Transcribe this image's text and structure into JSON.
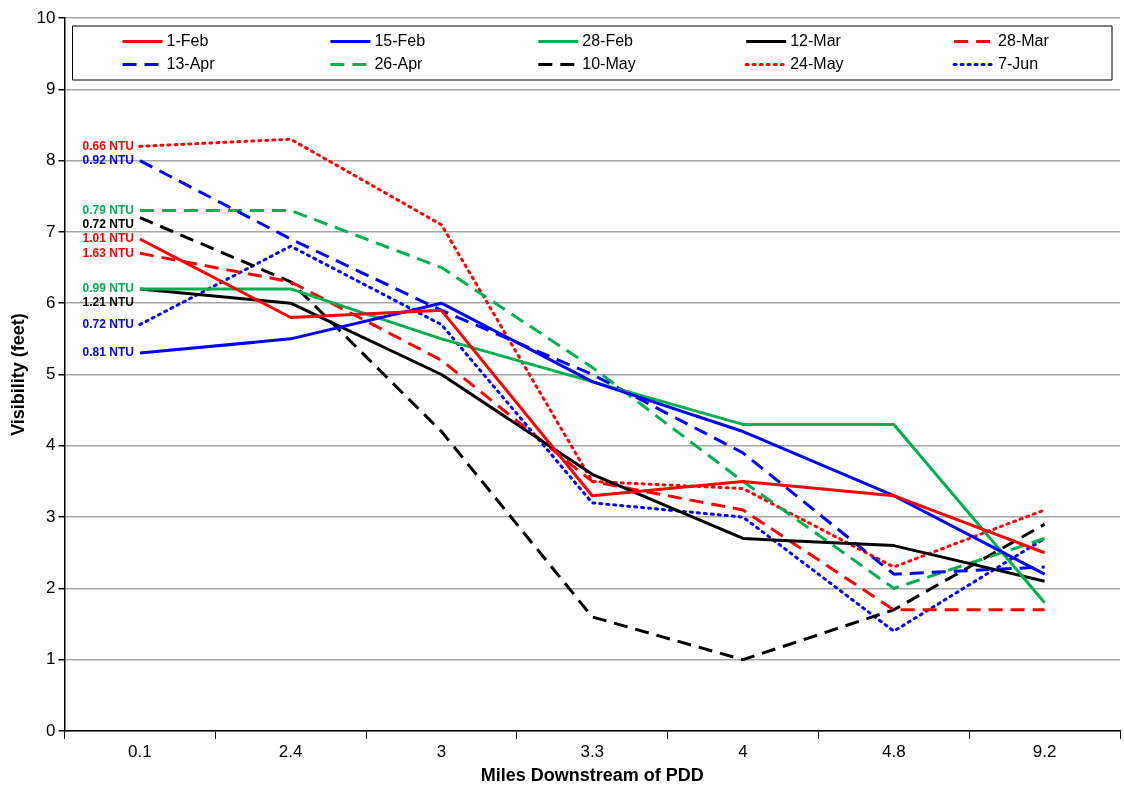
{
  "chart_data": {
    "type": "line",
    "xlabel": "Miles Downstream of PDD",
    "ylabel": "Visibility (feet)",
    "categories": [
      "0.1",
      "2.4",
      "3",
      "3.3",
      "4",
      "4.8",
      "9.2"
    ],
    "ylim": [
      0,
      10
    ],
    "yticks": [
      0,
      1,
      2,
      3,
      4,
      5,
      6,
      7,
      8,
      9,
      10
    ],
    "grid": "y",
    "legend": "top",
    "marker": "none",
    "series": [
      {
        "name": "1-Feb",
        "color": "#ff0000",
        "line_style": "solid",
        "values": [
          6.9,
          5.8,
          5.9,
          3.3,
          3.5,
          3.3,
          2.5
        ]
      },
      {
        "name": "15-Feb",
        "color": "#0000ff",
        "line_style": "solid",
        "values": [
          5.3,
          5.5,
          6.0,
          4.9,
          4.2,
          3.3,
          2.2
        ]
      },
      {
        "name": "28-Feb",
        "color": "#00b050",
        "line_style": "solid",
        "values": [
          6.2,
          6.2,
          5.5,
          4.9,
          4.3,
          4.3,
          1.8
        ]
      },
      {
        "name": "12-Mar",
        "color": "#000000",
        "line_style": "solid",
        "values": [
          6.2,
          6.0,
          5.0,
          3.6,
          2.7,
          2.6,
          2.1
        ]
      },
      {
        "name": "28-Mar",
        "color": "#ff0000",
        "line_style": "dashed",
        "values": [
          6.7,
          6.3,
          5.2,
          3.5,
          3.1,
          1.7,
          1.7
        ]
      },
      {
        "name": "13-Apr",
        "color": "#0000ff",
        "line_style": "dashed",
        "values": [
          8.0,
          6.9,
          5.9,
          5.0,
          3.9,
          2.2,
          2.3
        ]
      },
      {
        "name": "26-Apr",
        "color": "#00b050",
        "line_style": "dashed",
        "values": [
          7.3,
          7.3,
          6.5,
          5.1,
          3.5,
          2.0,
          2.7
        ]
      },
      {
        "name": "10-May",
        "color": "#000000",
        "line_style": "dashed",
        "values": [
          7.2,
          6.3,
          4.2,
          1.6,
          1.0,
          1.7,
          2.9
        ]
      },
      {
        "name": "24-May",
        "color": "#ff0000",
        "line_style": "dotted",
        "values": [
          8.2,
          8.3,
          7.1,
          3.5,
          3.4,
          2.3,
          3.1
        ]
      },
      {
        "name": "7-Jun",
        "color": "#0000ff",
        "line_style": "dotted",
        "values": [
          5.7,
          6.8,
          5.7,
          3.2,
          3.0,
          1.4,
          2.7
        ]
      }
    ],
    "annotations": [
      {
        "text": "1.01 NTU",
        "x": "0.1",
        "y": 6.9
      },
      {
        "text": "0.81 NTU",
        "x": "0.1",
        "y": 5.3
      },
      {
        "text": "0.99 NTU",
        "x": "0.1",
        "y": 6.2
      },
      {
        "text": "1.21 NTU",
        "x": "0.1",
        "y": 6.2
      },
      {
        "text": "1.63 NTU",
        "x": "0.1",
        "y": 6.7
      },
      {
        "text": "0.92 NTU",
        "x": "0.1",
        "y": 8.0
      },
      {
        "text": "0.79 NTU",
        "x": "0.1",
        "y": 7.3
      },
      {
        "text": "0.72 NTU",
        "x": "0.1",
        "y": 7.2
      },
      {
        "text": "0.66 NTU",
        "x": "0.1",
        "y": 8.2
      },
      {
        "text": "0.72 NTU",
        "x": "0.1",
        "y": 5.7
      }
    ]
  }
}
